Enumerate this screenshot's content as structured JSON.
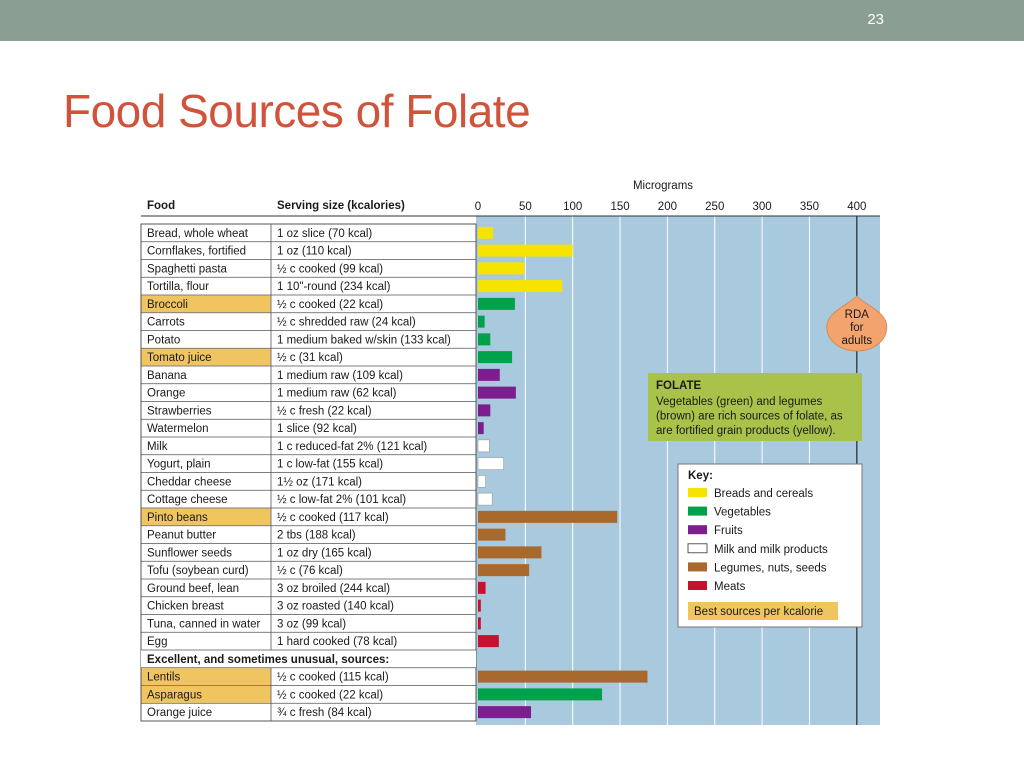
{
  "slide": {
    "number": "23",
    "title": "Food Sources of Folate"
  },
  "colors": {
    "Breads and cereals": "#f7e300",
    "Vegetables": "#00a14b",
    "Fruits": "#7b1f8e",
    "Milk and milk products": "#ffffff",
    "Legumes, nuts, seeds": "#a9692c",
    "Meats": "#c4122f",
    "highlight": "#f0c55f",
    "plot_bg": "#a9c9df",
    "note_bg": "#a8c24a",
    "topbar": "#8a9e94",
    "title": "#d0533b",
    "rda": "#f3a36e"
  },
  "chart_data": {
    "type": "bar",
    "orientation": "horizontal",
    "axis_title": "Micrograms",
    "xlim": [
      0,
      430
    ],
    "ticks": [
      0,
      50,
      100,
      150,
      200,
      250,
      300,
      350,
      400
    ],
    "grid": true,
    "reference_line": {
      "value": 400,
      "label": [
        "RDA",
        "for",
        "adults"
      ]
    },
    "col_food": "Food",
    "col_serving": "Serving size (kcalories)",
    "section_header": "Excellent, and sometimes unusual, sources:",
    "rows": [
      {
        "food": "Bread, whole wheat",
        "serving": "1 oz slice (70 kcal)",
        "value": 16,
        "group": "Breads and cereals",
        "best": false
      },
      {
        "food": "Cornflakes, fortified",
        "serving": "1 oz (110 kcal)",
        "value": 100,
        "group": "Breads and cereals",
        "best": false
      },
      {
        "food": "Spaghetti pasta",
        "serving": "½ c cooked (99 kcal)",
        "value": 49,
        "group": "Breads and cereals",
        "best": false
      },
      {
        "food": "Tortilla, flour",
        "serving": "1 10\"-round (234 kcal)",
        "value": 89,
        "group": "Breads and cereals",
        "best": false
      },
      {
        "food": "Broccoli",
        "serving": "½ c cooked (22 kcal)",
        "value": 39,
        "group": "Vegetables",
        "best": true
      },
      {
        "food": "Carrots",
        "serving": "½ c shredded raw (24 kcal)",
        "value": 7,
        "group": "Vegetables",
        "best": false
      },
      {
        "food": "Potato",
        "serving": "1 medium baked w/skin (133 kcal)",
        "value": 13,
        "group": "Vegetables",
        "best": false
      },
      {
        "food": "Tomato juice",
        "serving": "½ c (31 kcal)",
        "value": 36,
        "group": "Vegetables",
        "best": true
      },
      {
        "food": "Banana",
        "serving": "1 medium raw (109 kcal)",
        "value": 23,
        "group": "Fruits",
        "best": false
      },
      {
        "food": "Orange",
        "serving": "1 medium raw (62 kcal)",
        "value": 40,
        "group": "Fruits",
        "best": false
      },
      {
        "food": "Strawberries",
        "serving": "½ c fresh (22 kcal)",
        "value": 13,
        "group": "Fruits",
        "best": false
      },
      {
        "food": "Watermelon",
        "serving": "1 slice (92 kcal)",
        "value": 6,
        "group": "Fruits",
        "best": false
      },
      {
        "food": "Milk",
        "serving": "1 c reduced-fat 2% (121 kcal)",
        "value": 12,
        "group": "Milk and milk products",
        "best": false
      },
      {
        "food": "Yogurt, plain",
        "serving": "1 c low-fat (155 kcal)",
        "value": 27,
        "group": "Milk and milk products",
        "best": false
      },
      {
        "food": "Cheddar cheese",
        "serving": "1½ oz (171 kcal)",
        "value": 8,
        "group": "Milk and milk products",
        "best": false
      },
      {
        "food": "Cottage cheese",
        "serving": "½ c low-fat 2% (101 kcal)",
        "value": 15,
        "group": "Milk and milk products",
        "best": false
      },
      {
        "food": "Pinto beans",
        "serving": "½ c cooked (117 kcal)",
        "value": 147,
        "group": "Legumes, nuts, seeds",
        "best": true
      },
      {
        "food": "Peanut butter",
        "serving": "2 tbs (188 kcal)",
        "value": 29,
        "group": "Legumes, nuts, seeds",
        "best": false
      },
      {
        "food": "Sunflower seeds",
        "serving": "1 oz dry (165 kcal)",
        "value": 67,
        "group": "Legumes, nuts, seeds",
        "best": false
      },
      {
        "food": "Tofu (soybean curd)",
        "serving": "½ c (76 kcal)",
        "value": 54,
        "group": "Legumes, nuts, seeds",
        "best": false
      },
      {
        "food": "Ground beef, lean",
        "serving": "3 oz broiled (244 kcal)",
        "value": 8,
        "group": "Meats",
        "best": false
      },
      {
        "food": "Chicken breast",
        "serving": "3 oz roasted (140 kcal)",
        "value": 3,
        "group": "Meats",
        "best": false
      },
      {
        "food": "Tuna, canned in water",
        "serving": "3 oz (99 kcal)",
        "value": 3,
        "group": "Meats",
        "best": false
      },
      {
        "food": "Egg",
        "serving": "1 hard cooked (78 kcal)",
        "value": 22,
        "group": "Meats",
        "best": false
      },
      {
        "section": true
      },
      {
        "food": "Lentils",
        "serving": "½ c cooked (115 kcal)",
        "value": 179,
        "group": "Legumes, nuts, seeds",
        "best": true
      },
      {
        "food": "Asparagus",
        "serving": "½ c cooked (22 kcal)",
        "value": 131,
        "group": "Vegetables",
        "best": true
      },
      {
        "food": "Orange juice",
        "serving": "¾ c fresh (84 kcal)",
        "value": 56,
        "group": "Fruits",
        "best": false
      }
    ],
    "note": {
      "title": "FOLATE",
      "lines": [
        "Vegetables (green) and legumes",
        "(brown) are rich sources of folate, as",
        "are fortified grain products (yellow)."
      ]
    },
    "legend": {
      "title": "Key:",
      "entries": [
        "Breads and cereals",
        "Vegetables",
        "Fruits",
        "Milk and milk products",
        "Legumes, nuts, seeds",
        "Meats"
      ],
      "best_label": "Best sources per kcalorie"
    }
  }
}
